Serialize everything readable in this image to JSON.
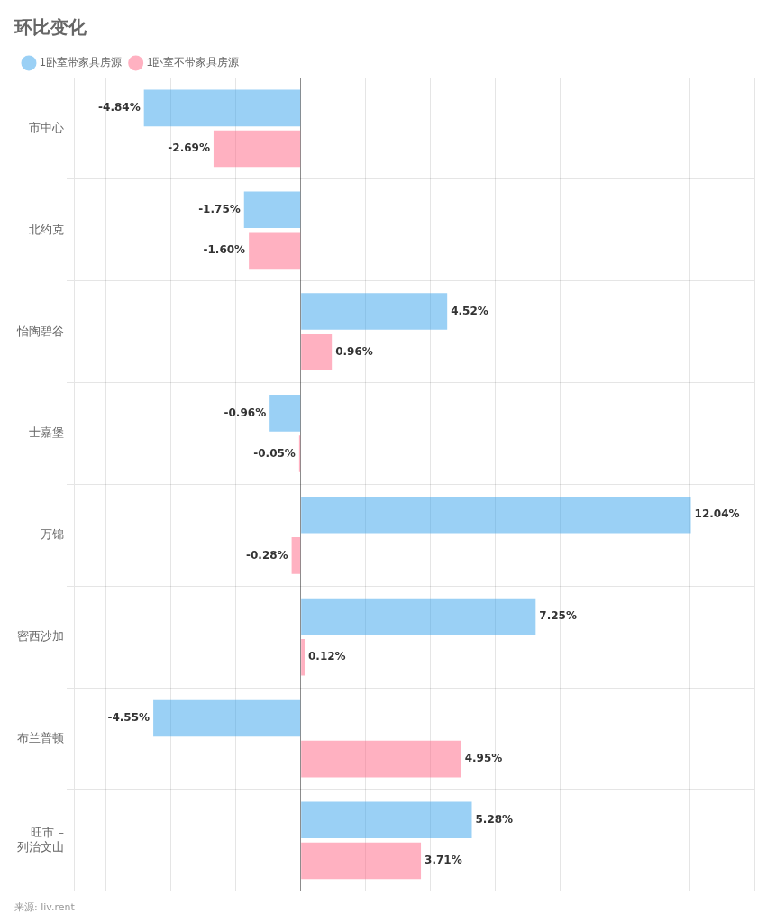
{
  "chart_data": {
    "type": "bar",
    "orientation": "horizontal",
    "title": "环比变化",
    "annotations": [
      "来源: liv.rent"
    ],
    "categories": [
      "市中心",
      "北约克",
      "怡陶碧谷",
      "士嘉堡",
      "万锦",
      "密西沙加",
      "布兰普顿",
      "旺市 –\n列治文山"
    ],
    "series": [
      {
        "name": "1卧室带家具房源",
        "values": [
          -4.84,
          -1.75,
          4.52,
          -0.96,
          12.04,
          7.25,
          -4.55,
          5.28
        ],
        "value_labels": [
          "-4.84%",
          "-1.75%",
          "4.52%",
          "-0.96%",
          "12.04%",
          "7.25%",
          "-4.55%",
          "5.28%"
        ]
      },
      {
        "name": "1卧室不带家具房源",
        "values": [
          -2.69,
          -1.6,
          0.96,
          -0.05,
          -0.28,
          0.12,
          4.95,
          3.71
        ],
        "value_labels": [
          "-2.69%",
          "-1.60%",
          "0.96%",
          "-0.05%",
          "-0.28%",
          "0.12%",
          "4.95%",
          "3.71%"
        ]
      }
    ],
    "xlim": [
      -7,
      14
    ],
    "xticks": [
      -6,
      -4,
      -2,
      0,
      2,
      4,
      6,
      8,
      10,
      12,
      14
    ],
    "grid": true,
    "legend": "top",
    "data_labels": true,
    "tick_labels": "y"
  }
}
